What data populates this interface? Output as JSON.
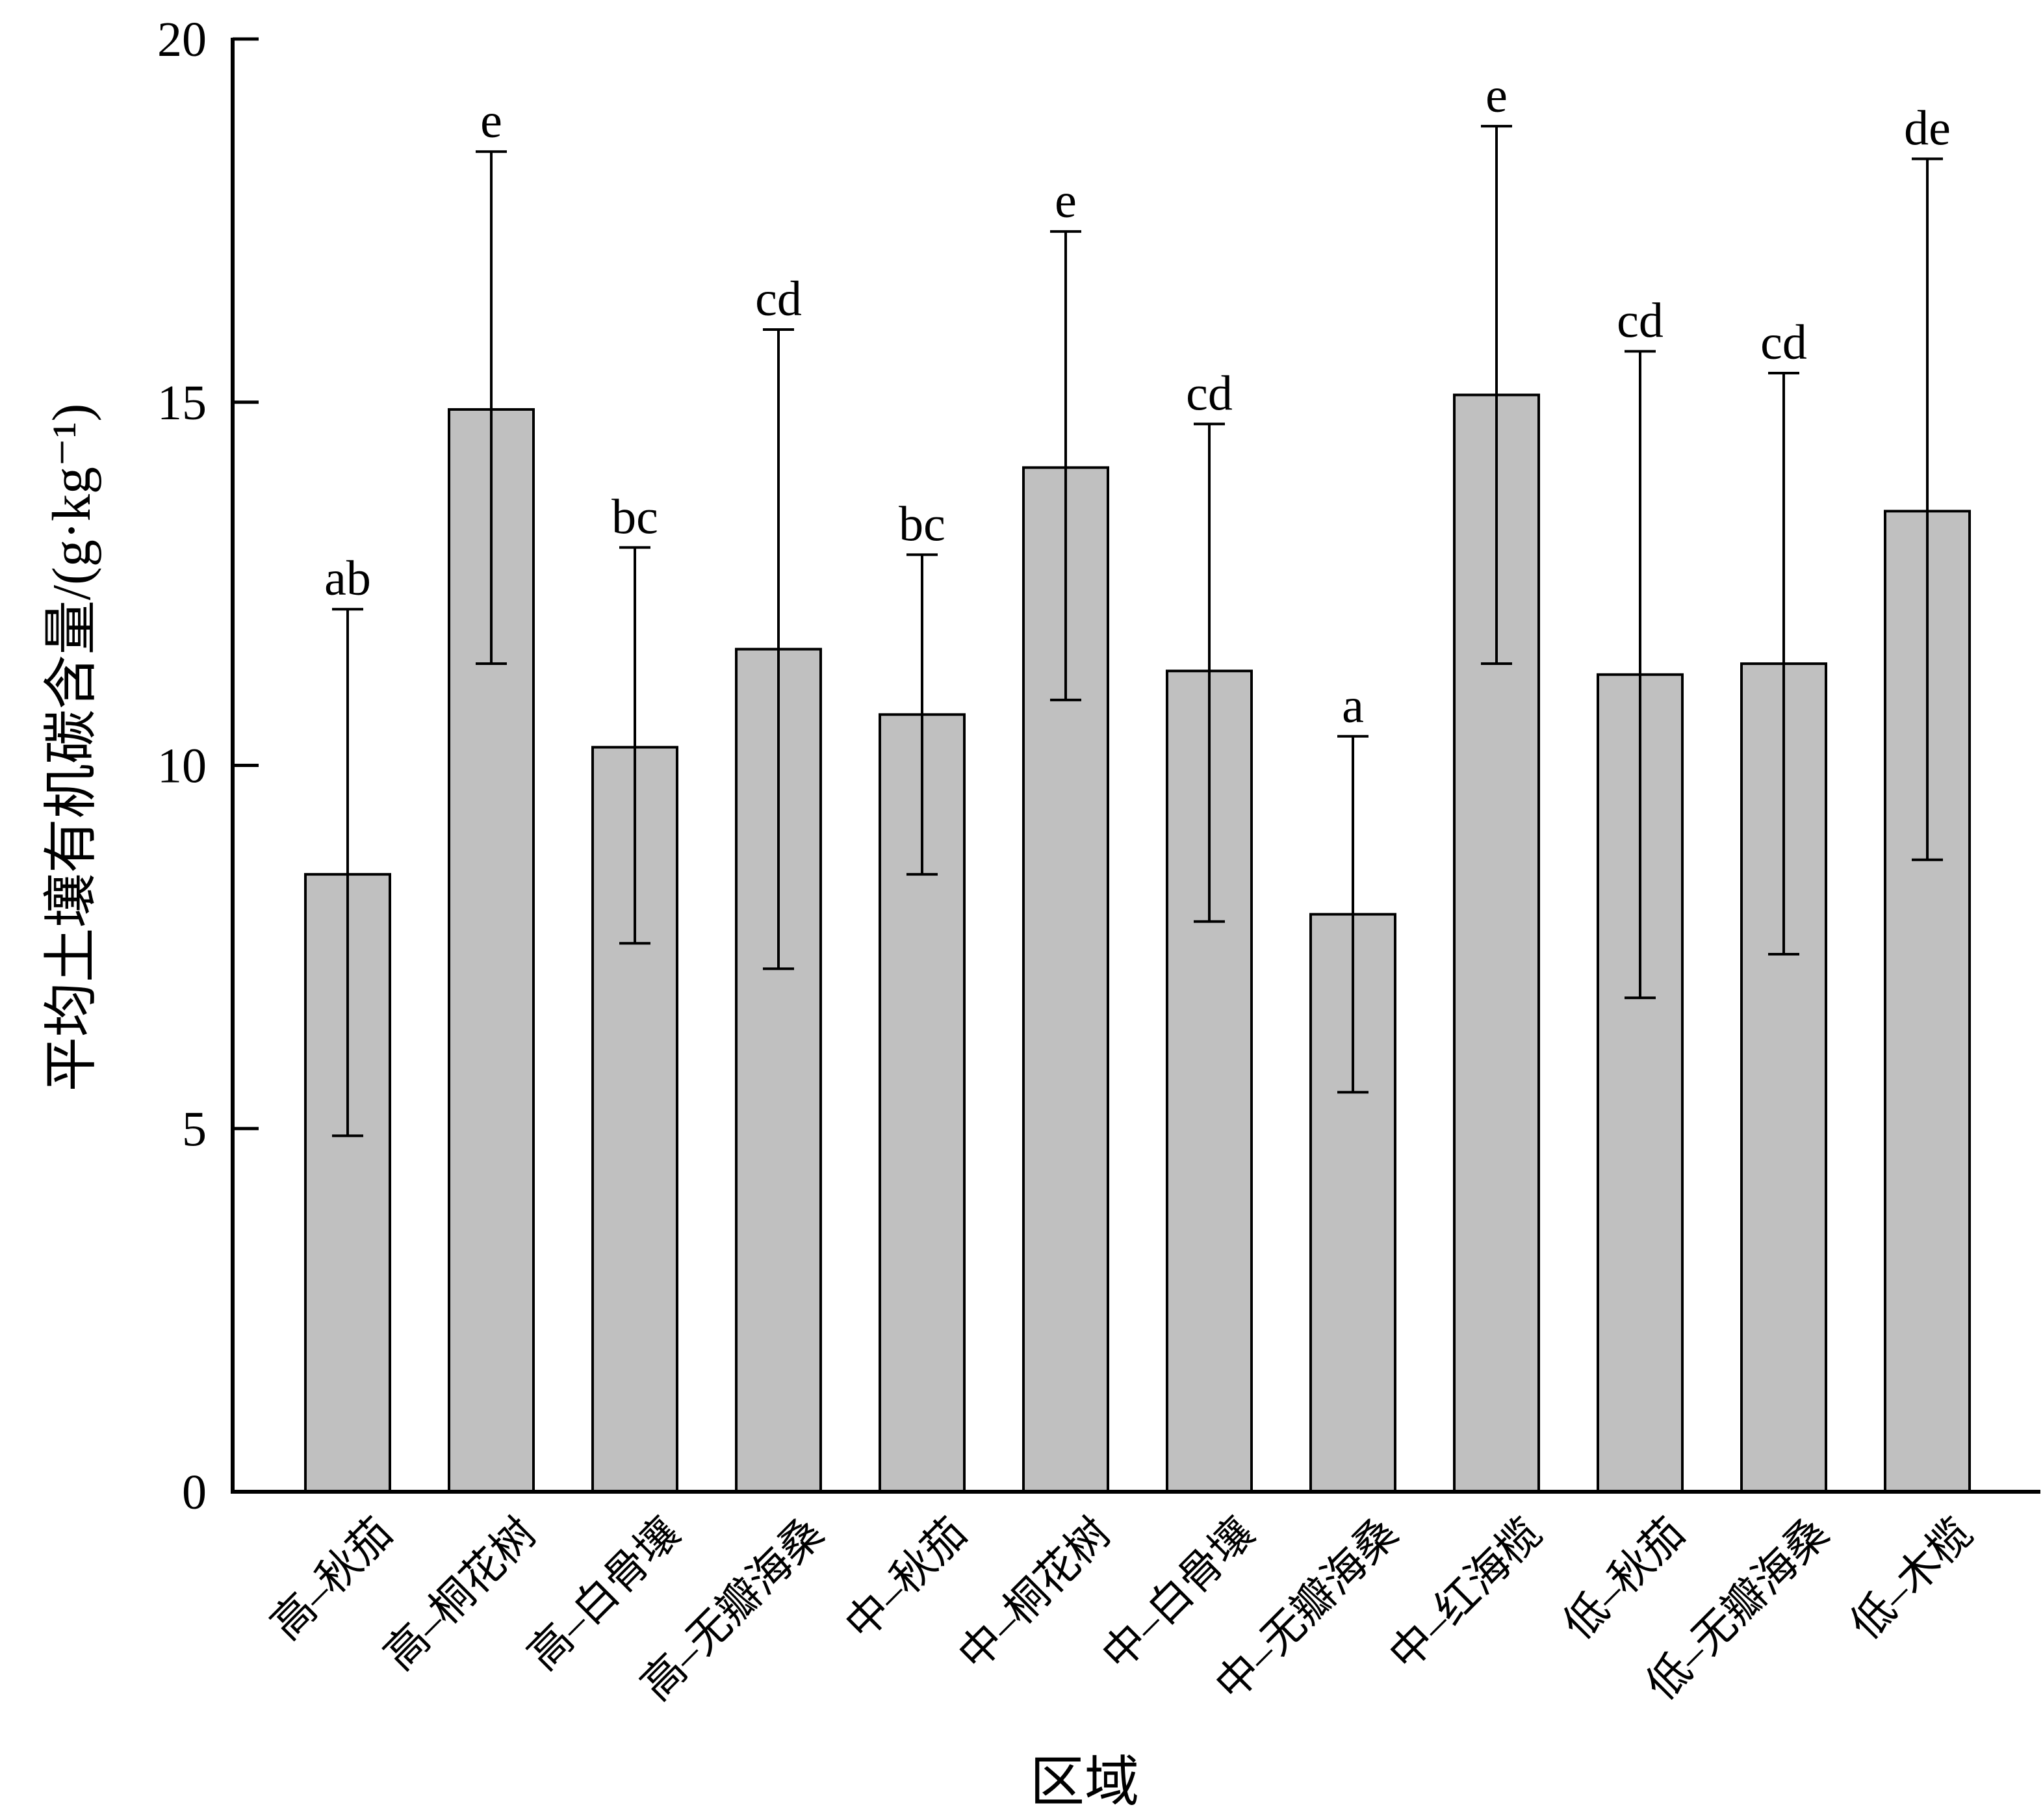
{
  "chart_data": {
    "type": "bar",
    "xlabel": "区域",
    "ylabel": "平均土壤有机碳含量/(g·kg⁻¹)",
    "ylim": [
      0,
      20
    ],
    "yticks": [
      "0",
      "5",
      "10",
      "15",
      "20"
    ],
    "grid": false,
    "categories": [
      "高–秋茄",
      "高–桐花树",
      "高–白骨壤",
      "高–无瓣海桑",
      "中–秋茄",
      "中–桐花树",
      "中–白骨壤",
      "中–无瓣海桑",
      "中–红海榄",
      "低–秋茄",
      "低–无瓣海桑",
      "低–木榄"
    ],
    "values": [
      8.5,
      14.9,
      10.25,
      11.6,
      10.7,
      14.1,
      11.3,
      7.95,
      15.1,
      11.25,
      11.4,
      13.5
    ],
    "error_high": [
      12.15,
      18.45,
      13.0,
      16.0,
      12.9,
      17.35,
      14.7,
      10.4,
      18.8,
      15.7,
      15.4,
      18.35
    ],
    "error_low": [
      4.9,
      11.4,
      7.55,
      7.2,
      8.5,
      10.9,
      7.85,
      5.5,
      11.4,
      6.8,
      7.4,
      8.7
    ],
    "significance": [
      "ab",
      "e",
      "bc",
      "cd",
      "bc",
      "e",
      "cd",
      "a",
      "e",
      "cd",
      "cd",
      "de"
    ],
    "bar_color": "#c0c0c0",
    "edge_color": "#000000"
  }
}
